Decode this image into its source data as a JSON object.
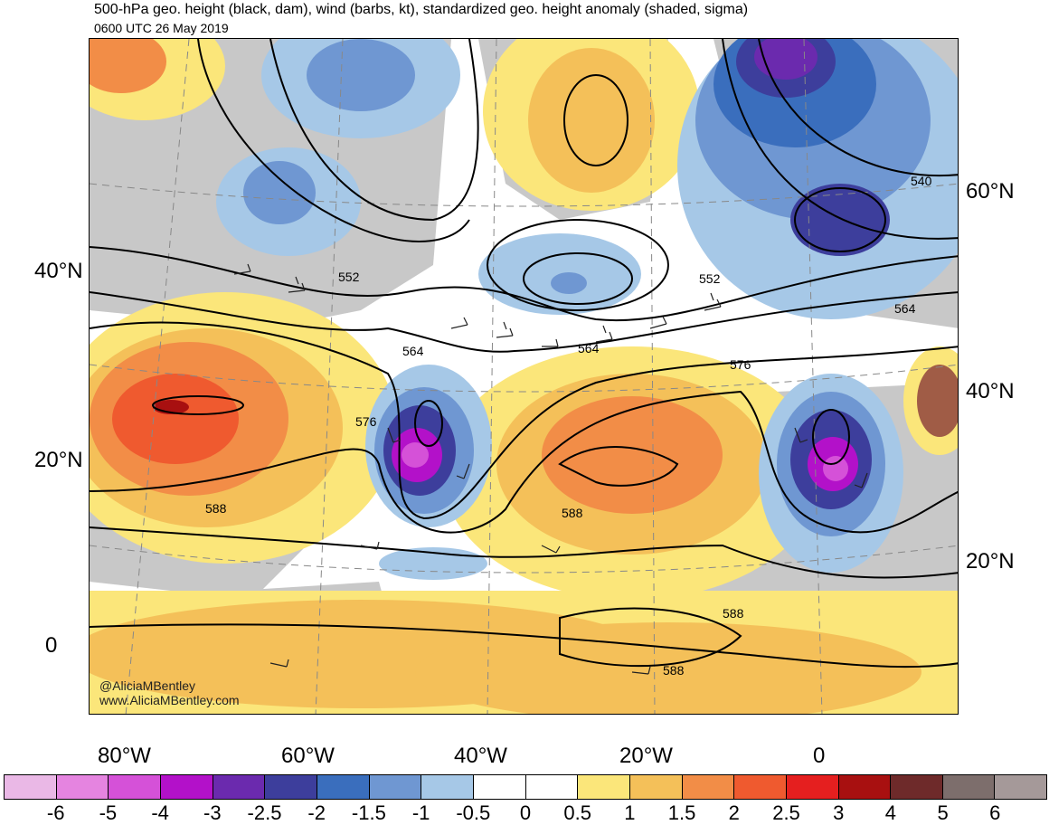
{
  "header": {
    "title": "500-hPa geo. height (black, dam), wind (barbs, kt), standardized geo. height anomaly (shaded, sigma)",
    "valid_time": "0600 UTC 26 May 2019"
  },
  "map": {
    "left_lat_labels": [
      "40°N",
      "20°N",
      "0"
    ],
    "right_lat_labels": [
      "60°N",
      "40°N",
      "20°N"
    ],
    "lon_labels": [
      "80°W",
      "60°W",
      "40°W",
      "20°W",
      "0"
    ],
    "contour_labels": [
      "552",
      "552",
      "540",
      "564",
      "564",
      "564",
      "576",
      "576",
      "588",
      "588",
      "588",
      "588"
    ],
    "credits": [
      "@AliciaMBentley",
      "www.AliciaMBentley.com"
    ],
    "land_color": "#c8c8c8",
    "contour_color": "#000000"
  },
  "colorbar": {
    "tick_labels": [
      "-6",
      "-5",
      "-4",
      "-3",
      "-2.5",
      "-2",
      "-1.5",
      "-1",
      "-0.5",
      "0",
      "0.5",
      "1",
      "1.5",
      "2",
      "2.5",
      "3",
      "4",
      "5",
      "6"
    ],
    "colors": [
      "#eab8e6",
      "#e584e0",
      "#d551d8",
      "#b311c9",
      "#6b2aae",
      "#3d3e9c",
      "#3a6ebd",
      "#6f97d2",
      "#a6c8e7",
      "#ffffff",
      "#ffffff",
      "#fbe67a",
      "#f4c059",
      "#f28d47",
      "#ef5a2f",
      "#e51f1f",
      "#a81010",
      "#6e2a2a",
      "#7d6e6c",
      "#a59999"
    ]
  }
}
